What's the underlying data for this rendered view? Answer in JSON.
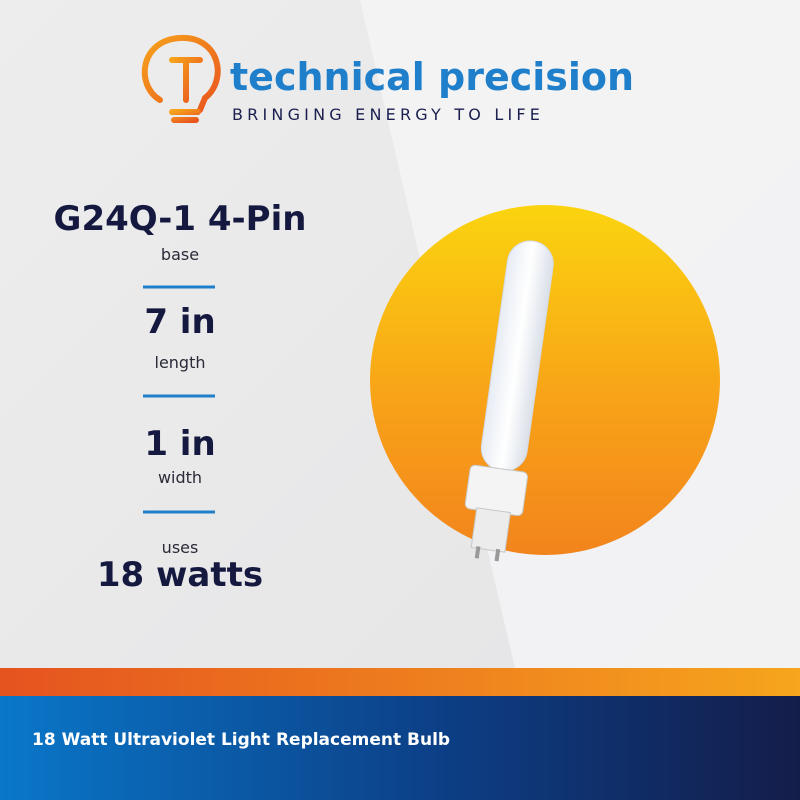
{
  "header": {
    "brand": "technical precision",
    "tagline": "BRINGING ENERGY TO LIFE"
  },
  "specs": [
    {
      "value": "G24Q-1 4-Pin",
      "label": "base"
    },
    {
      "value": "7 in",
      "label": "length"
    },
    {
      "value": "1 in",
      "label": "width"
    }
  ],
  "power": {
    "label": "uses",
    "value": "18 watts"
  },
  "footer": {
    "text": "18 Watt Ultraviolet Light Replacement Bulb"
  }
}
